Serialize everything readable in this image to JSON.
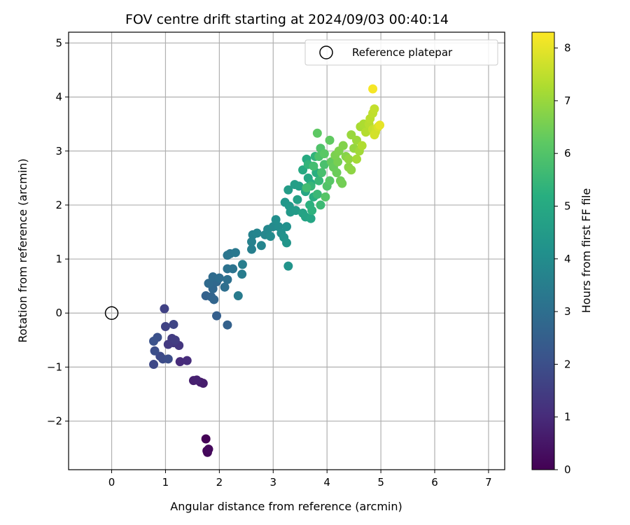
{
  "chart_data": {
    "type": "scatter",
    "title": "FOV centre drift starting at 2024/09/03 00:40:14",
    "xlabel": "Angular distance from reference (arcmin)",
    "ylabel": "Rotation from reference (arcmin)",
    "colorbar_label": "Hours from first FF file",
    "xlim": [
      -0.8,
      7.3
    ],
    "ylim": [
      -2.9,
      5.2
    ],
    "clim": [
      0,
      8.3
    ],
    "xticks": [
      0,
      1,
      2,
      3,
      4,
      5,
      6,
      7
    ],
    "yticks": [
      -2,
      -1,
      0,
      1,
      2,
      3,
      4,
      5
    ],
    "cticks": [
      0,
      1,
      2,
      3,
      4,
      5,
      6,
      7,
      8
    ],
    "grid": true,
    "colormap": "viridis",
    "legend": {
      "placement": "top-right",
      "entries": [
        {
          "label": "Reference platepar",
          "marker": "open-circle"
        }
      ]
    },
    "reference_point": {
      "x": 0,
      "y": 0
    },
    "points": [
      {
        "x": 1.75,
        "y": -2.33,
        "t": 0.05
      },
      {
        "x": 1.77,
        "y": -2.55,
        "t": 0.1
      },
      {
        "x": 1.78,
        "y": -2.58,
        "t": 0.15
      },
      {
        "x": 1.8,
        "y": -2.52,
        "t": 0.2
      },
      {
        "x": 1.65,
        "y": -1.28,
        "t": 0.6
      },
      {
        "x": 1.7,
        "y": -1.3,
        "t": 0.65
      },
      {
        "x": 1.52,
        "y": -1.25,
        "t": 0.7
      },
      {
        "x": 1.58,
        "y": -1.24,
        "t": 0.75
      },
      {
        "x": 1.27,
        "y": -0.9,
        "t": 1.0
      },
      {
        "x": 1.4,
        "y": -0.88,
        "t": 1.05
      },
      {
        "x": 1.25,
        "y": -0.6,
        "t": 1.3
      },
      {
        "x": 1.15,
        "y": -0.55,
        "t": 1.35
      },
      {
        "x": 1.05,
        "y": -0.58,
        "t": 1.4
      },
      {
        "x": 1.12,
        "y": -0.47,
        "t": 1.45
      },
      {
        "x": 1.18,
        "y": -0.5,
        "t": 1.5
      },
      {
        "x": 0.98,
        "y": 0.08,
        "t": 1.6
      },
      {
        "x": 1.0,
        "y": -0.25,
        "t": 1.65
      },
      {
        "x": 1.15,
        "y": -0.21,
        "t": 1.7
      },
      {
        "x": 0.78,
        "y": -0.95,
        "t": 1.8
      },
      {
        "x": 0.9,
        "y": -0.8,
        "t": 1.85
      },
      {
        "x": 0.95,
        "y": -0.85,
        "t": 1.9
      },
      {
        "x": 1.05,
        "y": -0.85,
        "t": 1.95
      },
      {
        "x": 0.8,
        "y": -0.7,
        "t": 2.0
      },
      {
        "x": 0.85,
        "y": -0.45,
        "t": 2.05
      },
      {
        "x": 0.78,
        "y": -0.52,
        "t": 2.1
      },
      {
        "x": 1.95,
        "y": -0.05,
        "t": 2.5
      },
      {
        "x": 2.15,
        "y": -0.22,
        "t": 2.55
      },
      {
        "x": 1.75,
        "y": 0.32,
        "t": 2.6
      },
      {
        "x": 1.85,
        "y": 0.3,
        "t": 2.65
      },
      {
        "x": 1.9,
        "y": 0.25,
        "t": 2.7
      },
      {
        "x": 1.88,
        "y": 0.45,
        "t": 2.75
      },
      {
        "x": 1.95,
        "y": 0.58,
        "t": 2.8
      },
      {
        "x": 1.8,
        "y": 0.55,
        "t": 2.85
      },
      {
        "x": 1.88,
        "y": 0.67,
        "t": 2.9
      },
      {
        "x": 2.0,
        "y": 0.65,
        "t": 2.95
      },
      {
        "x": 2.1,
        "y": 0.48,
        "t": 3.0
      },
      {
        "x": 2.15,
        "y": 0.62,
        "t": 3.05
      },
      {
        "x": 2.15,
        "y": 0.82,
        "t": 3.1
      },
      {
        "x": 2.25,
        "y": 0.82,
        "t": 3.15
      },
      {
        "x": 2.15,
        "y": 1.07,
        "t": 3.2
      },
      {
        "x": 2.2,
        "y": 1.1,
        "t": 3.25
      },
      {
        "x": 2.3,
        "y": 1.12,
        "t": 3.3
      },
      {
        "x": 2.35,
        "y": 0.32,
        "t": 3.4
      },
      {
        "x": 2.42,
        "y": 0.72,
        "t": 3.45
      },
      {
        "x": 2.43,
        "y": 0.9,
        "t": 3.5
      },
      {
        "x": 2.6,
        "y": 1.18,
        "t": 3.55
      },
      {
        "x": 2.6,
        "y": 1.32,
        "t": 3.6
      },
      {
        "x": 2.62,
        "y": 1.45,
        "t": 3.65
      },
      {
        "x": 2.7,
        "y": 1.48,
        "t": 3.7
      },
      {
        "x": 2.78,
        "y": 1.25,
        "t": 3.75
      },
      {
        "x": 2.85,
        "y": 1.45,
        "t": 3.8
      },
      {
        "x": 2.9,
        "y": 1.55,
        "t": 3.85
      },
      {
        "x": 3.0,
        "y": 1.6,
        "t": 3.9
      },
      {
        "x": 2.95,
        "y": 1.42,
        "t": 3.95
      },
      {
        "x": 3.1,
        "y": 1.6,
        "t": 4.0
      },
      {
        "x": 3.05,
        "y": 1.73,
        "t": 4.05
      },
      {
        "x": 3.15,
        "y": 1.48,
        "t": 4.1
      },
      {
        "x": 3.25,
        "y": 1.6,
        "t": 4.15
      },
      {
        "x": 3.2,
        "y": 1.4,
        "t": 4.2
      },
      {
        "x": 3.28,
        "y": 0.87,
        "t": 4.25
      },
      {
        "x": 3.25,
        "y": 1.3,
        "t": 4.3
      },
      {
        "x": 3.22,
        "y": 2.05,
        "t": 4.35
      },
      {
        "x": 3.3,
        "y": 1.98,
        "t": 4.4
      },
      {
        "x": 3.32,
        "y": 1.87,
        "t": 4.45
      },
      {
        "x": 3.42,
        "y": 1.9,
        "t": 4.5
      },
      {
        "x": 3.28,
        "y": 2.28,
        "t": 4.55
      },
      {
        "x": 3.4,
        "y": 2.38,
        "t": 4.6
      },
      {
        "x": 3.48,
        "y": 2.35,
        "t": 4.65
      },
      {
        "x": 3.45,
        "y": 2.1,
        "t": 4.7
      },
      {
        "x": 3.55,
        "y": 1.85,
        "t": 4.75
      },
      {
        "x": 3.6,
        "y": 1.78,
        "t": 4.8
      },
      {
        "x": 3.7,
        "y": 1.75,
        "t": 4.85
      },
      {
        "x": 3.6,
        "y": 2.25,
        "t": 4.9
      },
      {
        "x": 3.65,
        "y": 2.5,
        "t": 4.95
      },
      {
        "x": 3.55,
        "y": 2.65,
        "t": 5.0
      },
      {
        "x": 3.62,
        "y": 2.85,
        "t": 5.05
      },
      {
        "x": 3.7,
        "y": 2.4,
        "t": 5.1
      },
      {
        "x": 3.75,
        "y": 2.15,
        "t": 5.15
      },
      {
        "x": 3.8,
        "y": 2.6,
        "t": 5.2
      },
      {
        "x": 3.68,
        "y": 2.0,
        "t": 5.25
      },
      {
        "x": 3.72,
        "y": 1.9,
        "t": 5.3
      },
      {
        "x": 3.78,
        "y": 2.9,
        "t": 5.35
      },
      {
        "x": 3.65,
        "y": 2.75,
        "t": 5.4
      },
      {
        "x": 3.7,
        "y": 2.35,
        "t": 5.45
      },
      {
        "x": 3.85,
        "y": 2.45,
        "t": 5.5
      },
      {
        "x": 3.82,
        "y": 2.2,
        "t": 5.55
      },
      {
        "x": 3.88,
        "y": 2.0,
        "t": 5.6
      },
      {
        "x": 3.62,
        "y": 2.32,
        "t": 5.7
      },
      {
        "x": 3.75,
        "y": 2.72,
        "t": 5.75
      },
      {
        "x": 3.9,
        "y": 2.6,
        "t": 5.8
      },
      {
        "x": 3.95,
        "y": 2.75,
        "t": 5.85
      },
      {
        "x": 3.85,
        "y": 2.9,
        "t": 5.9
      },
      {
        "x": 3.88,
        "y": 3.05,
        "t": 5.95
      },
      {
        "x": 4.0,
        "y": 2.35,
        "t": 6.0
      },
      {
        "x": 3.97,
        "y": 2.15,
        "t": 6.05
      },
      {
        "x": 4.05,
        "y": 2.45,
        "t": 6.1
      },
      {
        "x": 3.95,
        "y": 2.95,
        "t": 6.15
      },
      {
        "x": 3.82,
        "y": 3.33,
        "t": 6.2
      },
      {
        "x": 4.05,
        "y": 3.2,
        "t": 6.25
      },
      {
        "x": 4.08,
        "y": 2.8,
        "t": 6.3
      },
      {
        "x": 4.12,
        "y": 2.7,
        "t": 6.35
      },
      {
        "x": 4.18,
        "y": 2.6,
        "t": 6.4
      },
      {
        "x": 4.25,
        "y": 2.45,
        "t": 6.45
      },
      {
        "x": 4.28,
        "y": 2.4,
        "t": 6.5
      },
      {
        "x": 4.2,
        "y": 2.8,
        "t": 6.55
      },
      {
        "x": 4.15,
        "y": 2.92,
        "t": 6.6
      },
      {
        "x": 4.22,
        "y": 3.0,
        "t": 6.65
      },
      {
        "x": 4.3,
        "y": 3.1,
        "t": 6.7
      },
      {
        "x": 4.35,
        "y": 2.9,
        "t": 6.75
      },
      {
        "x": 4.4,
        "y": 2.7,
        "t": 6.8
      },
      {
        "x": 4.45,
        "y": 2.65,
        "t": 6.85
      },
      {
        "x": 4.4,
        "y": 2.85,
        "t": 6.9
      },
      {
        "x": 4.5,
        "y": 3.05,
        "t": 6.95
      },
      {
        "x": 4.45,
        "y": 3.3,
        "t": 7.0
      },
      {
        "x": 4.55,
        "y": 3.2,
        "t": 7.05
      },
      {
        "x": 4.6,
        "y": 3.0,
        "t": 7.1
      },
      {
        "x": 4.55,
        "y": 2.85,
        "t": 7.15
      },
      {
        "x": 4.62,
        "y": 3.45,
        "t": 7.2
      },
      {
        "x": 4.68,
        "y": 3.5,
        "t": 7.25
      },
      {
        "x": 4.65,
        "y": 3.1,
        "t": 7.3
      },
      {
        "x": 4.72,
        "y": 3.35,
        "t": 7.35
      },
      {
        "x": 4.78,
        "y": 3.5,
        "t": 7.4
      },
      {
        "x": 4.8,
        "y": 3.6,
        "t": 7.45
      },
      {
        "x": 4.85,
        "y": 3.7,
        "t": 7.5
      },
      {
        "x": 4.88,
        "y": 3.78,
        "t": 7.55
      },
      {
        "x": 4.85,
        "y": 3.4,
        "t": 7.6
      },
      {
        "x": 4.9,
        "y": 3.35,
        "t": 7.65
      },
      {
        "x": 4.92,
        "y": 3.42,
        "t": 7.7
      },
      {
        "x": 4.88,
        "y": 3.3,
        "t": 7.75
      },
      {
        "x": 4.95,
        "y": 3.45,
        "t": 7.85
      },
      {
        "x": 4.98,
        "y": 3.48,
        "t": 8.0
      },
      {
        "x": 4.85,
        "y": 4.15,
        "t": 8.2
      }
    ]
  }
}
